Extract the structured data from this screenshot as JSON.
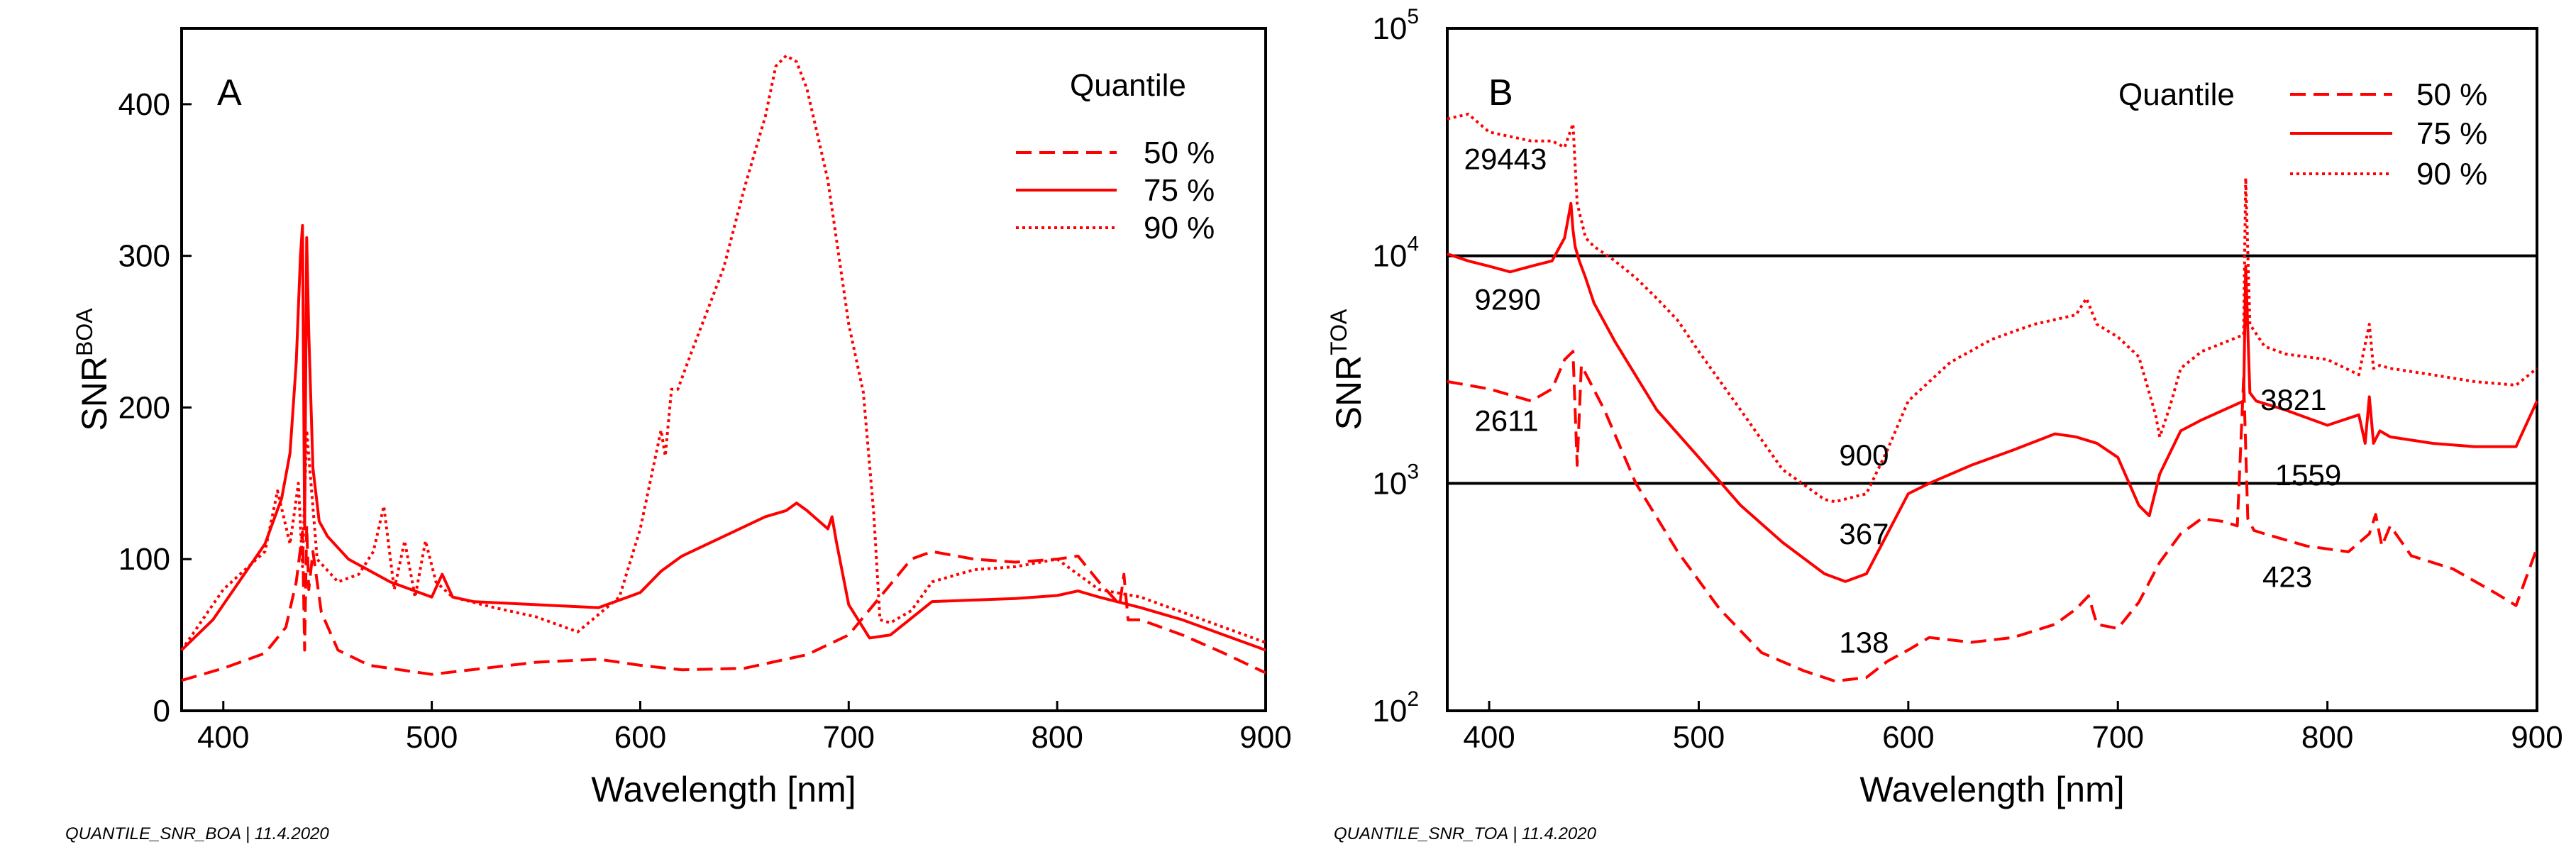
{
  "chart_data": [
    {
      "type": "line",
      "panel": "A",
      "xlabel": "Wavelength [nm]",
      "ylabel": "SNR",
      "ylabel_sup": "BOA",
      "xlim": [
        380,
        900
      ],
      "ylim": [
        0,
        450
      ],
      "yscale": "linear",
      "xticks": [
        400,
        500,
        600,
        700,
        800,
        900
      ],
      "yticks": [
        0,
        100,
        200,
        300,
        400
      ],
      "legend_title": "Quantile",
      "footer": "QUANTILE_SNR_BOA | 11.4.2020",
      "series": [
        {
          "name": "50 %",
          "style": "dashed",
          "color": "#ff0000",
          "x": [
            380,
            400,
            420,
            430,
            435,
            438,
            439,
            440,
            441,
            443,
            447,
            455,
            470,
            500,
            550,
            580,
            600,
            620,
            650,
            680,
            700,
            715,
            730,
            740,
            760,
            780,
            800,
            810,
            820,
            830,
            832,
            834,
            840,
            860,
            880,
            900
          ],
          "y": [
            20,
            28,
            38,
            55,
            85,
            118,
            40,
            122,
            80,
            105,
            65,
            40,
            30,
            24,
            32,
            34,
            30,
            27,
            28,
            37,
            50,
            75,
            100,
            105,
            100,
            98,
            100,
            102,
            85,
            70,
            90,
            60,
            60,
            50,
            38,
            25
          ]
        },
        {
          "name": "75 %",
          "style": "solid",
          "color": "#ff0000",
          "x": [
            380,
            395,
            410,
            420,
            428,
            432,
            435,
            437,
            438,
            439,
            440,
            441,
            443,
            446,
            450,
            460,
            480,
            500,
            505,
            510,
            520,
            550,
            580,
            600,
            610,
            620,
            640,
            660,
            670,
            675,
            680,
            690,
            692,
            694,
            700,
            710,
            720,
            740,
            760,
            780,
            800,
            810,
            820,
            840,
            860,
            880,
            900
          ],
          "y": [
            40,
            60,
            90,
            110,
            140,
            170,
            230,
            300,
            320,
            120,
            312,
            250,
            160,
            125,
            115,
            100,
            85,
            75,
            90,
            75,
            72,
            70,
            68,
            78,
            92,
            102,
            115,
            128,
            132,
            137,
            132,
            120,
            128,
            112,
            70,
            48,
            50,
            72,
            73,
            74,
            76,
            79,
            75,
            68,
            60,
            50,
            40
          ]
        },
        {
          "name": "90 %",
          "style": "dotted",
          "color": "#ff0000",
          "x": [
            380,
            400,
            420,
            426,
            432,
            436,
            438,
            440,
            445,
            455,
            465,
            472,
            477,
            482,
            487,
            492,
            497,
            502,
            510,
            530,
            550,
            570,
            590,
            600,
            610,
            612,
            615,
            618,
            625,
            640,
            650,
            660,
            665,
            670,
            675,
            680,
            690,
            700,
            707,
            712,
            715,
            720,
            730,
            740,
            760,
            780,
            800,
            820,
            840,
            860,
            880,
            900
          ],
          "y": [
            40,
            80,
            105,
            145,
            110,
            150,
            95,
            185,
            100,
            85,
            90,
            105,
            135,
            80,
            112,
            75,
            112,
            85,
            75,
            68,
            62,
            52,
            75,
            120,
            185,
            168,
            212,
            212,
            238,
            292,
            345,
            392,
            425,
            432,
            428,
            410,
            350,
            255,
            210,
            130,
            60,
            58,
            66,
            85,
            93,
            95,
            100,
            80,
            75,
            65,
            55,
            45
          ]
        }
      ],
      "annotations": []
    },
    {
      "type": "line",
      "panel": "B",
      "xlabel": "Wavelength [nm]",
      "ylabel": "SNR",
      "ylabel_sup": "TOA",
      "xlim": [
        380,
        900
      ],
      "ylim": [
        100,
        100000
      ],
      "yscale": "log",
      "xticks": [
        400,
        500,
        600,
        700,
        800,
        900
      ],
      "yticks": [
        {
          "base": "10",
          "exp": "2",
          "value": 100
        },
        {
          "base": "10",
          "exp": "3",
          "value": 1000
        },
        {
          "base": "10",
          "exp": "4",
          "value": 10000
        },
        {
          "base": "10",
          "exp": "5",
          "value": 100000
        }
      ],
      "hlines": [
        1000,
        10000
      ],
      "legend_title": "Quantile",
      "footer": "QUANTILE_SNR_TOA | 11.4.2020",
      "series": [
        {
          "name": "50 %",
          "style": "dashed",
          "color": "#ff0000",
          "x": [
            380,
            400,
            420,
            430,
            436,
            440,
            442,
            444,
            448,
            455,
            470,
            490,
            510,
            530,
            550,
            565,
            580,
            590,
            600,
            610,
            630,
            650,
            670,
            680,
            686,
            690,
            700,
            710,
            720,
            730,
            740,
            750,
            757,
            760,
            762,
            765,
            770,
            790,
            810,
            820,
            823,
            826,
            830,
            840,
            860,
            880,
            890,
            900
          ],
          "y": [
            2800,
            2600,
            2300,
            2600,
            3500,
            3800,
            1200,
            3300,
            2800,
            2100,
            1000,
            500,
            280,
            180,
            150,
            135,
            140,
            165,
            185,
            210,
            200,
            210,
            240,
            280,
            320,
            240,
            230,
            300,
            450,
            600,
            700,
            680,
            650,
            2900,
            700,
            620,
            600,
            530,
            500,
            600,
            730,
            530,
            650,
            480,
            420,
            330,
            290,
            520
          ]
        },
        {
          "name": "75 %",
          "style": "solid",
          "color": "#ff0000",
          "x": [
            380,
            390,
            400,
            410,
            420,
            430,
            436,
            439,
            440,
            441,
            443,
            446,
            450,
            460,
            480,
            500,
            520,
            540,
            560,
            570,
            580,
            590,
            600,
            610,
            630,
            650,
            670,
            680,
            690,
            700,
            710,
            715,
            720,
            730,
            740,
            760,
            761,
            763,
            766,
            780,
            800,
            815,
            818,
            820,
            822,
            825,
            830,
            850,
            870,
            890,
            900
          ],
          "y": [
            10200,
            9500,
            9000,
            8500,
            9000,
            9500,
            12000,
            17000,
            13000,
            11000,
            9500,
            8000,
            6200,
            4200,
            2100,
            1300,
            800,
            550,
            400,
            370,
            400,
            600,
            900,
            1000,
            1200,
            1400,
            1650,
            1600,
            1500,
            1300,
            800,
            720,
            1100,
            1700,
            1900,
            2300,
            9000,
            2500,
            2300,
            2100,
            1800,
            2000,
            1500,
            2400,
            1500,
            1700,
            1600,
            1500,
            1450,
            1450,
            2300
          ]
        },
        {
          "name": "90 %",
          "style": "dotted",
          "color": "#ff0000",
          "x": [
            380,
            390,
            400,
            420,
            430,
            436,
            440,
            442,
            446,
            450,
            460,
            470,
            480,
            490,
            500,
            520,
            540,
            560,
            565,
            580,
            590,
            600,
            620,
            640,
            660,
            680,
            685,
            690,
            700,
            710,
            718,
            720,
            725,
            730,
            740,
            760,
            761,
            763,
            770,
            780,
            800,
            815,
            820,
            822,
            825,
            830,
            850,
            870,
            890,
            900
          ],
          "y": [
            40000,
            42000,
            35000,
            32000,
            32000,
            30000,
            38000,
            17000,
            12000,
            11000,
            9500,
            8000,
            6500,
            5200,
            3800,
            2100,
            1150,
            850,
            830,
            900,
            1400,
            2300,
            3400,
            4300,
            5000,
            5500,
            6500,
            5000,
            4400,
            3600,
            2000,
            1600,
            2200,
            3200,
            3800,
            4500,
            22000,
            5000,
            4000,
            3700,
            3500,
            3000,
            5000,
            3200,
            3300,
            3200,
            3000,
            2800,
            2700,
            3200
          ]
        }
      ],
      "annotations": [
        {
          "text": "29443",
          "x": 388,
          "y": 24000
        },
        {
          "text": "9290",
          "x": 393,
          "y": 5800
        },
        {
          "text": "2611",
          "x": 393,
          "y": 1700
        },
        {
          "text": "900",
          "x": 567,
          "y": 1200
        },
        {
          "text": "367",
          "x": 567,
          "y": 540
        },
        {
          "text": "138",
          "x": 567,
          "y": 180
        },
        {
          "text": "3821",
          "x": 768,
          "y": 2100
        },
        {
          "text": "1559",
          "x": 775,
          "y": 980
        },
        {
          "text": "423",
          "x": 769,
          "y": 350
        }
      ]
    }
  ]
}
